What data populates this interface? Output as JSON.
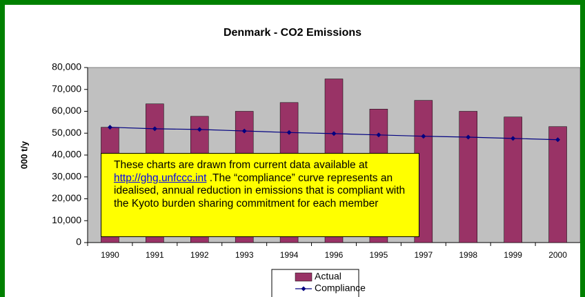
{
  "chart_data": {
    "type": "bar",
    "title": "Denmark - CO2 Emissions",
    "ylabel": "000 t/y",
    "categories": [
      "1990",
      "1991",
      "1992",
      "1993",
      "1994",
      "1996",
      "1995",
      "1997",
      "1998",
      "1999",
      "2000"
    ],
    "series": [
      {
        "name": "Actual",
        "type": "bar",
        "color": "#993366",
        "values": [
          52700,
          63400,
          57700,
          60000,
          64000,
          74800,
          61000,
          65000,
          60000,
          57400,
          53000
        ]
      },
      {
        "name": "Compliance",
        "type": "line",
        "color": "#000080",
        "values": [
          52700,
          52000,
          51700,
          51000,
          50300,
          49800,
          49200,
          48600,
          48200,
          47600,
          47000
        ]
      }
    ],
    "ylim": [
      0,
      80000
    ],
    "yticks": [
      0,
      {
        "value": 10000,
        "label": "10,000"
      },
      {
        "value": 20000,
        "label": "20,000"
      },
      {
        "value": 30000,
        "label": "30,000"
      },
      {
        "value": 40000,
        "label": "40,000"
      },
      {
        "value": 50000,
        "label": "50,000"
      },
      {
        "value": 60000,
        "label": "60,000"
      },
      {
        "value": 70000,
        "label": "70,000"
      },
      {
        "value": 80000,
        "label": "80,000"
      }
    ],
    "grid": false,
    "plot_background": "#c0c0c0",
    "annotation": {
      "before": "These charts are drawn from current data available at ",
      "link": "http://ghg.unfccc.int",
      "after": " .The “compliance” curve represents an idealised, annual reduction in emissions that is compliant with the Kyoto burden sharing commitment for each member"
    }
  }
}
